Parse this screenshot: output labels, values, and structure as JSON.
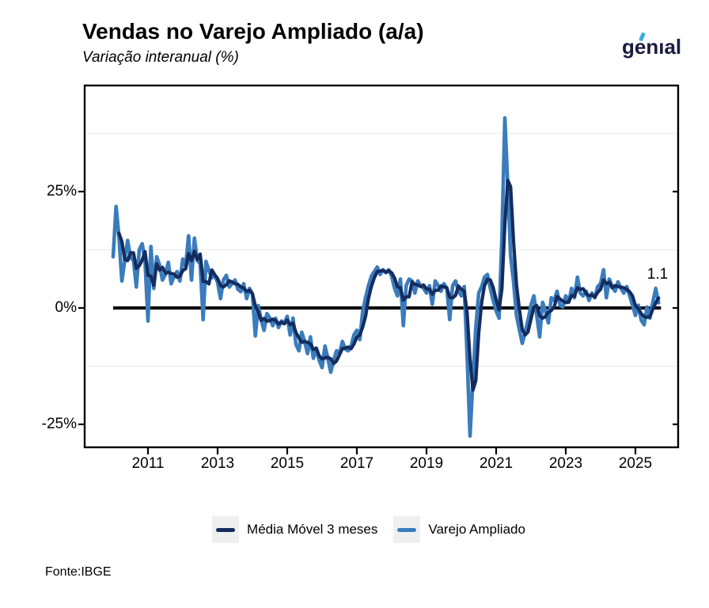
{
  "header": {
    "title": "Vendas no Varejo Ampliado (a/a)",
    "subtitle": "Variação interanual (%)"
  },
  "logo": {
    "text": "genıal"
  },
  "annotation": {
    "last_value_label": "1.1"
  },
  "footer": {
    "source": "Fonte:IBGE"
  },
  "legend": [
    {
      "label": "Média Móvel 3 meses",
      "color": "#142C5E"
    },
    {
      "label": "Varejo Ampliado",
      "color": "#3A7CBD"
    }
  ],
  "colors": {
    "ma_line": "#142C5E",
    "raw_line": "#3A7CBD",
    "zero_line": "#000000",
    "panel_border": "#000000",
    "minor_gridline": "#EFEFEF",
    "legend_key_bg": "#EFEFEF",
    "logo_navy": "#1A1C3E",
    "logo_accent_blue": "#3FADE3"
  },
  "chart_data": {
    "type": "line",
    "title": "Vendas no Varejo Ampliado (a/a)",
    "subtitle": "Variação interanual (%)",
    "frequency": "monthly",
    "x_start": {
      "year": 2010,
      "month": 1
    },
    "x_end": {
      "year": 2025,
      "month": 9
    },
    "x_ticks": [
      2011,
      2013,
      2015,
      2017,
      2019,
      2021,
      2023,
      2025
    ],
    "y_axis": {
      "ticks": [
        {
          "value": 25,
          "label": "25%"
        },
        {
          "value": 0,
          "label": "0%"
        },
        {
          "value": -25,
          "label": "-25%"
        }
      ],
      "minor_gridlines": [
        37.5,
        12.5,
        -12.5
      ],
      "range": [
        -30,
        47
      ]
    },
    "zero_line": true,
    "last_value": 1.1,
    "legend_position": "bottom",
    "series": [
      {
        "name": "Varejo Ampliado",
        "color": "#3A7CBD",
        "values": [
          11.0,
          21.8,
          15.3,
          5.8,
          10.2,
          14.5,
          10.8,
          10.2,
          4.5,
          12.5,
          13.8,
          10.0,
          -2.8,
          13.2,
          4.2,
          11.0,
          9.2,
          6.0,
          7.2,
          9.8,
          5.2,
          6.8,
          7.8,
          5.8,
          10.5,
          9.0,
          15.5,
          6.0,
          15.0,
          10.2,
          9.5,
          -2.5,
          10.0,
          8.0,
          6.5,
          7.0,
          5.5,
          2.0,
          6.0,
          7.0,
          4.5,
          5.2,
          6.0,
          4.0,
          3.5,
          5.2,
          2.0,
          4.2,
          3.0,
          -6.0,
          0.5,
          -2.5,
          -4.8,
          -1.2,
          -2.2,
          -3.8,
          -2.2,
          -4.2,
          -2.8,
          -3.2,
          -1.8,
          -5.8,
          -2.2,
          -7.8,
          -9.2,
          -5.2,
          -7.2,
          -9.8,
          -6.2,
          -10.8,
          -8.8,
          -11.2,
          -12.8,
          -8.2,
          -10.8,
          -13.8,
          -11.2,
          -9.2,
          -9.8,
          -7.2,
          -8.8,
          -9.2,
          -8.2,
          -5.8,
          -4.8,
          -6.8,
          -0.8,
          2.2,
          4.8,
          6.8,
          7.8,
          8.8,
          7.2,
          8.2,
          7.6,
          8.2,
          6.8,
          4.2,
          2.6,
          6.2,
          -3.8,
          4.8,
          6.2,
          5.8,
          3.2,
          5.8,
          4.8,
          4.2,
          3.2,
          4.8,
          0.8,
          5.8,
          4.8,
          3.6,
          5.2,
          4.2,
          -2.5,
          4.8,
          5.8,
          3.6,
          2.6,
          4.6,
          -10.2,
          -27.5,
          -15.2,
          -4.2,
          3.2,
          4.6,
          6.6,
          7.2,
          4.2,
          1.6,
          -0.6,
          -2.2,
          15.2,
          40.8,
          26.2,
          11.2,
          5.6,
          -1.6,
          -4.6,
          -7.6,
          -5.2,
          -2.6,
          0.6,
          2.6,
          -1.6,
          -6.2,
          1.2,
          -0.6,
          -3.2,
          2.2,
          1.6,
          3.6,
          0.6,
          0.2,
          2.6,
          1.2,
          4.2,
          2.2,
          6.6,
          3.2,
          2.6,
          3.6,
          1.6,
          3.2,
          2.2,
          4.6,
          5.2,
          8.2,
          2.2,
          6.2,
          4.6,
          3.6,
          5.6,
          4.2,
          3.2,
          4.6,
          2.6,
          0.6,
          -1.6,
          0.6,
          -2.6,
          -3.6,
          0.2,
          -2.2,
          1.2,
          4.2,
          1.1
        ]
      },
      {
        "name": "Média Móvel 3 meses",
        "color": "#142C5E",
        "derived": "trailing 3-month moving average of Varejo Ampliado"
      }
    ]
  }
}
